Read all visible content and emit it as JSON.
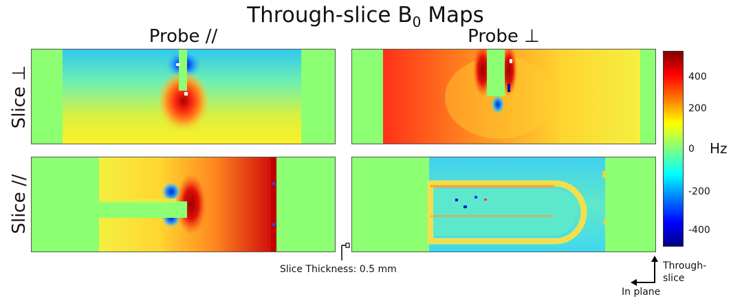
{
  "title": {
    "prefix": "Through-slice B",
    "subscript": "0",
    "suffix": " Maps"
  },
  "columns": [
    "Probe //",
    "Probe ⊥"
  ],
  "rows": [
    "Slice ⊥",
    "Slice //"
  ],
  "colorbar": {
    "unit": "Hz",
    "range": [
      -480,
      480
    ],
    "ticks": [
      "400",
      "200",
      "0",
      "-200",
      "-400"
    ],
    "tick_values": [
      400,
      200,
      0,
      -200,
      -400
    ],
    "colormap": "jet"
  },
  "annotations": {
    "slice_thickness": "Slice Thickness: 0.5 mm",
    "axis_through": "Through-",
    "axis_through_2": "slice",
    "axis_inplane": "In plane"
  },
  "colors": {
    "background_field": "#8cff72"
  }
}
